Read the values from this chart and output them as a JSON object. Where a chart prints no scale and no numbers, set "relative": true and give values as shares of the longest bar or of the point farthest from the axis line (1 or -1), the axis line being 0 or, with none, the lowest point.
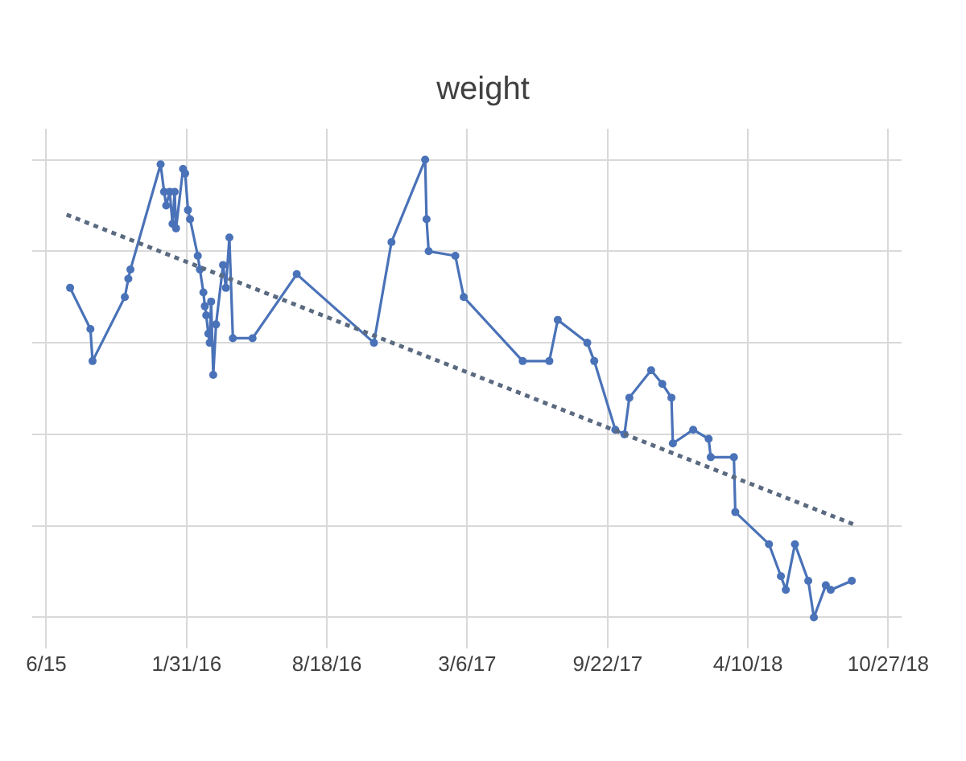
{
  "chart_data": {
    "type": "line",
    "title": "weight",
    "relative": true,
    "grid": true,
    "marker": "circle",
    "line_style": "solid",
    "xlim": [
      "2015-06-25",
      "2018-11-15"
    ],
    "xticks": [
      {
        "value": "2015-07-15",
        "label": "6/15"
      },
      {
        "value": "2016-01-31",
        "label": "1/31/16"
      },
      {
        "value": "2016-08-18",
        "label": "8/18/16"
      },
      {
        "value": "2017-03-06",
        "label": "3/6/17"
      },
      {
        "value": "2017-09-22",
        "label": "9/22/17"
      },
      {
        "value": "2018-04-10",
        "label": "4/10/18"
      },
      {
        "value": "2018-10-27",
        "label": "10/27/18"
      }
    ],
    "series": [
      {
        "color": "#4a72b8",
        "x": [
          "2015-08-18",
          "2015-09-16",
          "2015-09-19",
          "2015-11-04",
          "2015-11-09",
          "2015-11-12",
          "2015-12-25",
          "2015-12-30",
          "2016-01-02",
          "2016-01-07",
          "2016-01-11",
          "2016-01-14",
          "2016-01-16",
          "2016-01-26",
          "2016-01-29",
          "2016-02-02",
          "2016-02-05",
          "2016-02-16",
          "2016-02-19",
          "2016-02-24",
          "2016-02-26",
          "2016-02-28",
          "2016-03-02",
          "2016-03-04",
          "2016-03-06",
          "2016-03-09",
          "2016-03-13",
          "2016-03-23",
          "2016-03-27",
          "2016-04-01",
          "2016-04-06",
          "2016-05-04",
          "2016-07-06",
          "2016-10-24",
          "2016-11-18",
          "2017-01-05",
          "2017-01-07",
          "2017-01-10",
          "2017-02-17",
          "2017-03-01",
          "2017-05-24",
          "2017-07-01",
          "2017-07-13",
          "2017-08-24",
          "2017-09-03",
          "2017-10-03",
          "2017-10-16",
          "2017-10-23",
          "2017-11-23",
          "2017-12-09",
          "2017-12-22",
          "2017-12-24",
          "2018-01-22",
          "2018-02-13",
          "2018-02-16",
          "2018-03-21",
          "2018-03-23",
          "2018-05-10",
          "2018-05-27",
          "2018-06-03",
          "2018-06-16",
          "2018-07-05",
          "2018-07-13",
          "2018-07-30",
          "2018-08-06",
          "2018-09-05"
        ],
        "values": [
          0.72,
          0.63,
          0.56,
          0.7,
          0.74,
          0.76,
          0.99,
          0.93,
          0.9,
          0.93,
          0.86,
          0.93,
          0.85,
          0.98,
          0.97,
          0.89,
          0.87,
          0.79,
          0.76,
          0.71,
          0.68,
          0.66,
          0.62,
          0.6,
          0.69,
          0.53,
          0.64,
          0.77,
          0.72,
          0.83,
          0.61,
          0.61,
          0.75,
          0.6,
          0.82,
          1,
          0.87,
          0.8,
          0.79,
          0.7,
          0.56,
          0.56,
          0.65,
          0.6,
          0.56,
          0.41,
          0.4,
          0.48,
          0.54,
          0.51,
          0.48,
          0.38,
          0.41,
          0.39,
          0.35,
          0.35,
          0.23,
          0.16,
          0.09,
          0.06,
          0.16,
          0.08,
          0,
          0.07,
          0.06,
          0.08
        ]
      },
      {
        "type": "line",
        "color": "#5a6a80",
        "line_style": "dotted",
        "marker": "none",
        "x": [
          "2015-08-13",
          "2018-09-13"
        ],
        "values": [
          0.88,
          0.2
        ]
      }
    ]
  }
}
